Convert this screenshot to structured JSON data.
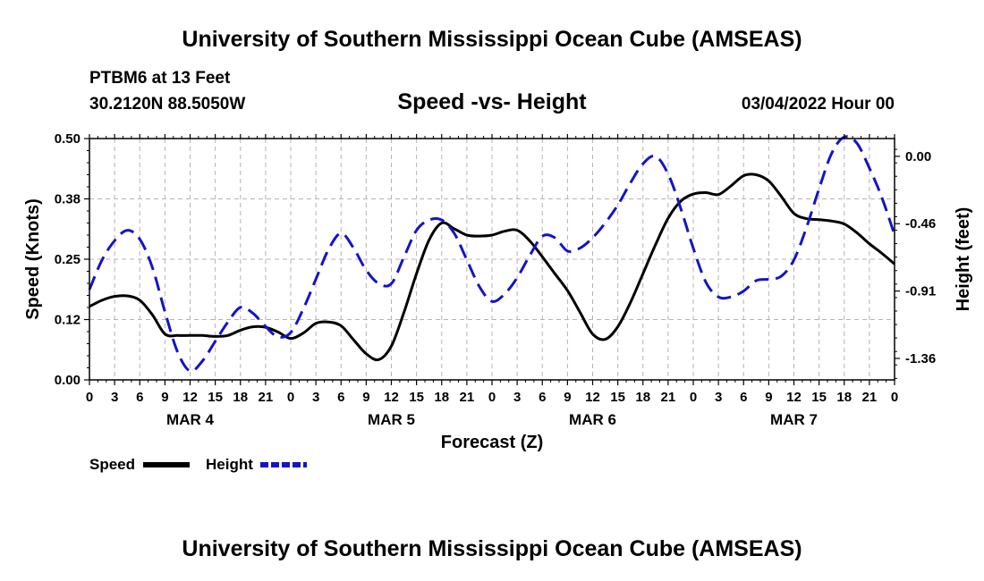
{
  "header": {
    "title": "University of Southern Mississippi Ocean Cube (AMSEAS)",
    "station": "PTBM6 at 13 Feet",
    "coords": "30.2120N  88.5050W",
    "chart_title": "Speed -vs- Height",
    "datetime": "03/04/2022 Hour 00"
  },
  "footer": {
    "title": "University of Southern Mississippi Ocean Cube (AMSEAS)"
  },
  "legend": {
    "speed_label": "Speed",
    "height_label": "Height",
    "speed_color": "#000000",
    "height_color": "#1414c8"
  },
  "chart_data": {
    "type": "line",
    "title": "Speed -vs- Height",
    "xlabel": "Forecast (Z)",
    "ylabel": "Speed (Knots)",
    "y2label": "Height (feet)",
    "xlim": [
      0,
      96
    ],
    "ylim": [
      0,
      0.5
    ],
    "y2lim": [
      -1.51,
      0.12
    ],
    "yticks": [
      {
        "value": 0,
        "label": "0.00"
      },
      {
        "value": 0.125,
        "label": "0.12"
      },
      {
        "value": 0.25,
        "label": "0.25"
      },
      {
        "value": 0.375,
        "label": "0.38"
      },
      {
        "value": 0.5,
        "label": "0.50"
      }
    ],
    "y2ticks": [
      {
        "value": 0.0,
        "label": "0.00"
      },
      {
        "value": -0.455,
        "label": "-0.46"
      },
      {
        "value": -0.91,
        "label": "-0.91"
      },
      {
        "value": -1.365,
        "label": "-1.36"
      }
    ],
    "xtick_labels": [
      "0",
      "3",
      "6",
      "9",
      "12",
      "15",
      "18",
      "21",
      "0",
      "3",
      "6",
      "9",
      "12",
      "15",
      "18",
      "21",
      "0",
      "3",
      "6",
      "9",
      "12",
      "15",
      "18",
      "21",
      "0",
      "3",
      "6",
      "9",
      "12",
      "15",
      "18",
      "21",
      "0"
    ],
    "day_labels": [
      {
        "x": 12,
        "label": "MAR 4"
      },
      {
        "x": 36,
        "label": "MAR 5"
      },
      {
        "x": 60,
        "label": "MAR 6"
      },
      {
        "x": 84,
        "label": "MAR 7"
      }
    ],
    "grid": true,
    "series": [
      {
        "name": "Speed",
        "axis": "left",
        "style": "solid",
        "x": [
          0,
          1.5,
          3,
          4.5,
          6,
          7.5,
          9,
          10.5,
          12,
          13.5,
          15,
          16.5,
          18,
          19.5,
          21,
          22.5,
          24,
          25.5,
          27,
          28.5,
          30,
          31.5,
          33,
          34.5,
          36,
          37.5,
          39,
          40.5,
          42,
          43.5,
          45,
          46.5,
          48,
          49.5,
          51,
          52.5,
          54,
          55.5,
          57,
          58.5,
          60,
          61.5,
          63,
          64.5,
          66,
          67.5,
          69,
          70.5,
          72,
          73.5,
          75,
          76.5,
          78,
          79.5,
          81,
          82.5,
          84,
          85.5,
          87,
          88.5,
          90,
          91.5,
          93,
          94.5,
          96
        ],
        "values": [
          0.152,
          0.165,
          0.173,
          0.174,
          0.165,
          0.135,
          0.095,
          0.092,
          0.092,
          0.092,
          0.09,
          0.092,
          0.103,
          0.11,
          0.109,
          0.099,
          0.086,
          0.097,
          0.117,
          0.12,
          0.112,
          0.083,
          0.054,
          0.042,
          0.07,
          0.14,
          0.22,
          0.29,
          0.325,
          0.313,
          0.3,
          0.298,
          0.3,
          0.308,
          0.31,
          0.288,
          0.255,
          0.22,
          0.185,
          0.14,
          0.095,
          0.084,
          0.11,
          0.16,
          0.22,
          0.28,
          0.335,
          0.37,
          0.385,
          0.388,
          0.384,
          0.402,
          0.423,
          0.425,
          0.412,
          0.38,
          0.345,
          0.334,
          0.332,
          0.329,
          0.323,
          0.305,
          0.282,
          0.262,
          0.24
        ]
      },
      {
        "name": "Height",
        "axis": "right",
        "style": "dashed",
        "x": [
          0,
          1.5,
          3,
          4.5,
          6,
          7.5,
          9,
          10.5,
          12,
          13.5,
          15,
          16.5,
          18,
          19.5,
          21,
          22.5,
          24,
          25.5,
          27,
          28.5,
          30,
          31.5,
          33,
          34.5,
          36,
          37.5,
          39,
          40.5,
          42,
          43.5,
          45,
          46.5,
          48,
          49.5,
          51,
          52.5,
          54,
          55.5,
          57,
          58.5,
          60,
          61.5,
          63,
          64.5,
          66,
          67.5,
          69,
          70.5,
          72,
          73.5,
          75,
          76.5,
          78,
          79.5,
          81,
          82.5,
          84,
          85.5,
          87,
          88.5,
          90,
          91.5,
          93,
          94.5,
          96
        ],
        "values": [
          -0.9,
          -0.7,
          -0.57,
          -0.5,
          -0.56,
          -0.75,
          -1.05,
          -1.32,
          -1.45,
          -1.38,
          -1.25,
          -1.12,
          -1.02,
          -1.06,
          -1.15,
          -1.22,
          -1.19,
          -1.03,
          -0.83,
          -0.63,
          -0.52,
          -0.62,
          -0.77,
          -0.86,
          -0.86,
          -0.68,
          -0.5,
          -0.43,
          -0.43,
          -0.52,
          -0.7,
          -0.88,
          -0.98,
          -0.93,
          -0.82,
          -0.67,
          -0.54,
          -0.55,
          -0.64,
          -0.62,
          -0.55,
          -0.45,
          -0.33,
          -0.18,
          -0.05,
          0.0,
          -0.12,
          -0.35,
          -0.62,
          -0.85,
          -0.95,
          -0.95,
          -0.91,
          -0.84,
          -0.83,
          -0.81,
          -0.7,
          -0.48,
          -0.22,
          0.02,
          0.13,
          0.09,
          -0.08,
          -0.28,
          -0.53
        ]
      }
    ]
  }
}
